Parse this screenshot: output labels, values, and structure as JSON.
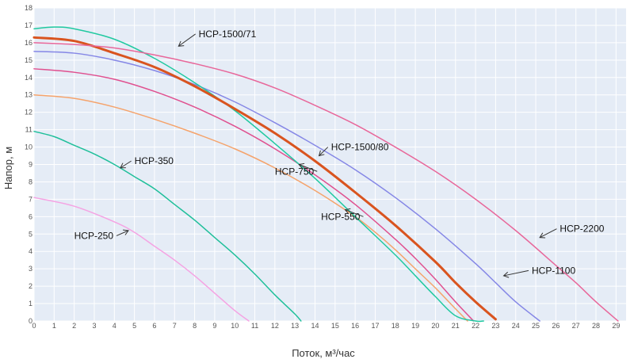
{
  "chart_data": {
    "type": "line",
    "title": "",
    "xlabel": "Поток, м³/час",
    "ylabel": "Напор, м",
    "xlim": [
      0,
      29.5
    ],
    "ylim": [
      0,
      18
    ],
    "xticks": [
      0,
      1,
      2,
      3,
      4,
      5,
      6,
      7,
      8,
      9,
      10,
      11,
      12,
      13,
      14,
      15,
      16,
      17,
      18,
      19,
      20,
      21,
      22,
      23,
      24,
      25,
      26,
      27,
      28,
      29
    ],
    "yticks": [
      0,
      1,
      2,
      3,
      4,
      5,
      6,
      7,
      8,
      9,
      10,
      11,
      12,
      13,
      14,
      15,
      16,
      17,
      18
    ],
    "grid": true,
    "plot_background": "#e5ecf6",
    "series": [
      {
        "name": "HCP-250",
        "color": "#f5a3e3",
        "width": 1.5,
        "x": [
          0,
          2,
          4,
          5,
          6,
          7,
          8,
          9,
          10,
          10.7
        ],
        "y": [
          7.1,
          6.6,
          5.7,
          5.1,
          4.3,
          3.5,
          2.6,
          1.6,
          0.6,
          0
        ]
      },
      {
        "name": "HCP-350",
        "color": "#1fbf9a",
        "width": 1.5,
        "x": [
          0,
          1,
          2,
          3,
          4,
          5,
          6,
          7,
          8,
          9,
          10,
          11,
          12,
          13,
          13.3
        ],
        "y": [
          10.9,
          10.6,
          10.1,
          9.6,
          9.0,
          8.3,
          7.6,
          6.7,
          5.8,
          4.8,
          3.8,
          2.7,
          1.5,
          0.4,
          0
        ]
      },
      {
        "name": "HCP-550",
        "color": "#f5a36b",
        "width": 1.5,
        "x": [
          0,
          2,
          4,
          6,
          8,
          10,
          12,
          14,
          16,
          17,
          18,
          19,
          20,
          21,
          21.6
        ],
        "y": [
          13.0,
          12.8,
          12.3,
          11.6,
          10.8,
          9.9,
          8.8,
          7.5,
          6.0,
          5.1,
          4.1,
          3.0,
          1.9,
          0.7,
          0
        ]
      },
      {
        "name": "HCP-750",
        "color": "#e0508f",
        "width": 1.5,
        "x": [
          0,
          2,
          4,
          6,
          8,
          10,
          12,
          14,
          16,
          18,
          19,
          20,
          21,
          21.9
        ],
        "y": [
          14.5,
          14.3,
          13.9,
          13.2,
          12.3,
          11.2,
          9.9,
          8.4,
          6.7,
          4.7,
          3.6,
          2.4,
          1.1,
          0
        ]
      },
      {
        "name": "HCP-1100",
        "color": "#8587e6",
        "width": 1.5,
        "x": [
          0,
          2,
          4,
          6,
          8,
          10,
          12,
          14,
          16,
          18,
          20,
          22,
          23,
          24,
          25.2
        ],
        "y": [
          15.5,
          15.4,
          15.0,
          14.4,
          13.6,
          12.6,
          11.4,
          10.1,
          8.7,
          7.1,
          5.3,
          3.3,
          2.2,
          1.1,
          0
        ]
      },
      {
        "name": "HCP-1500/71",
        "color": "#20c9a0",
        "width": 1.5,
        "x": [
          0,
          1,
          2,
          4,
          6,
          8,
          10,
          12,
          14,
          16,
          18,
          19,
          20,
          21,
          22,
          22.4
        ],
        "y": [
          16.8,
          16.9,
          16.8,
          16.2,
          15.1,
          13.7,
          12.1,
          10.2,
          8.2,
          6.0,
          3.8,
          2.6,
          1.4,
          0.3,
          0,
          0
        ]
      },
      {
        "name": "HCP-1500/80",
        "color": "#d9541f",
        "width": 3,
        "x": [
          0,
          2,
          4,
          6,
          8,
          10,
          12,
          14,
          16,
          18,
          20,
          21,
          22,
          23
        ],
        "y": [
          16.3,
          16.1,
          15.4,
          14.6,
          13.5,
          12.2,
          10.8,
          9.2,
          7.4,
          5.5,
          3.4,
          2.2,
          1.1,
          0.1
        ]
      },
      {
        "name": "HCP-2200",
        "color": "#e8679a",
        "width": 1.5,
        "x": [
          0,
          2,
          4,
          6,
          8,
          10,
          12,
          14,
          16,
          18,
          20,
          22,
          24,
          26,
          27,
          28,
          29.1
        ],
        "y": [
          16.0,
          15.9,
          15.7,
          15.3,
          14.8,
          14.2,
          13.4,
          12.4,
          11.3,
          10.0,
          8.6,
          7.0,
          5.2,
          3.2,
          2.2,
          1.1,
          0
        ]
      }
    ],
    "annotations": [
      {
        "text": "HCP-1500/71",
        "x": 8.2,
        "y": 16.5,
        "ax": 7.2,
        "ay": 15.8
      },
      {
        "text": "HCP-1500/80",
        "x": 14.8,
        "y": 10.0,
        "ax": 14.2,
        "ay": 9.5
      },
      {
        "text": "HCP-750",
        "x": 12.0,
        "y": 8.6,
        "ax": 13.2,
        "ay": 9.0
      },
      {
        "text": "HCP-350",
        "x": 5.0,
        "y": 9.2,
        "ax": 4.3,
        "ay": 8.8
      },
      {
        "text": "HCP-550",
        "x": 14.3,
        "y": 6.0,
        "ax": 15.5,
        "ay": 6.4
      },
      {
        "text": "HCP-250",
        "x": 2.0,
        "y": 4.9,
        "ax": 4.7,
        "ay": 5.2
      },
      {
        "text": "HCP-2200",
        "x": 26.2,
        "y": 5.3,
        "ax": 25.2,
        "ay": 4.8
      },
      {
        "text": "HCP-1100",
        "x": 24.8,
        "y": 2.9,
        "ax": 23.4,
        "ay": 2.6
      }
    ]
  }
}
